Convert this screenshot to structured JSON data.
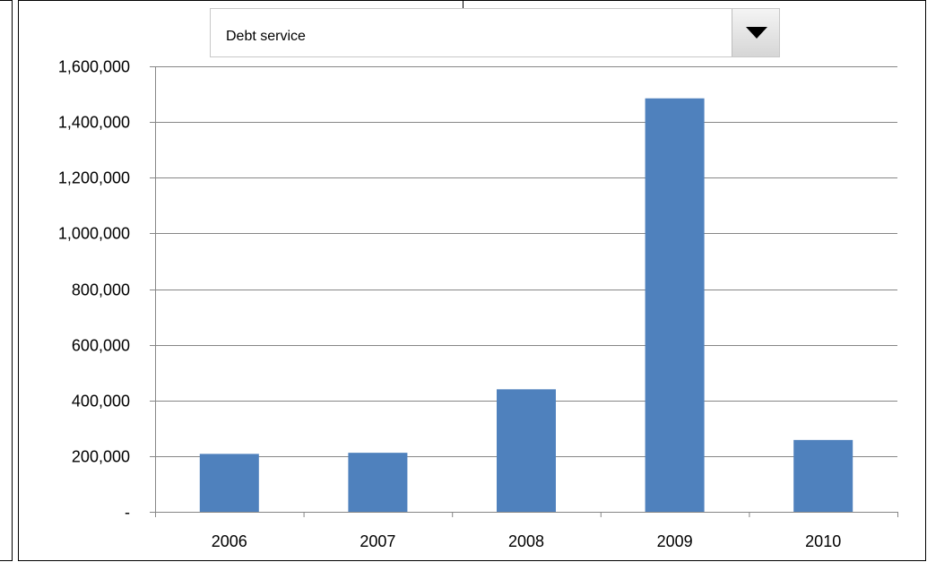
{
  "selector": {
    "selected": "Debt service"
  },
  "chart_data": {
    "type": "bar",
    "categories": [
      "2006",
      "2007",
      "2008",
      "2009",
      "2010"
    ],
    "values": [
      208000,
      212000,
      440000,
      1485000,
      258000
    ],
    "ylim": [
      0,
      1600000
    ],
    "yticks": [
      0,
      200000,
      400000,
      600000,
      800000,
      1000000,
      1200000,
      1400000,
      1600000
    ],
    "ytick_labels": [
      "-",
      "200,000",
      "400,000",
      "600,000",
      "800,000",
      "1,000,000",
      "1,200,000",
      "1,400,000",
      "1,600,000"
    ],
    "grid": true,
    "bar_color": "#4f81bd"
  }
}
